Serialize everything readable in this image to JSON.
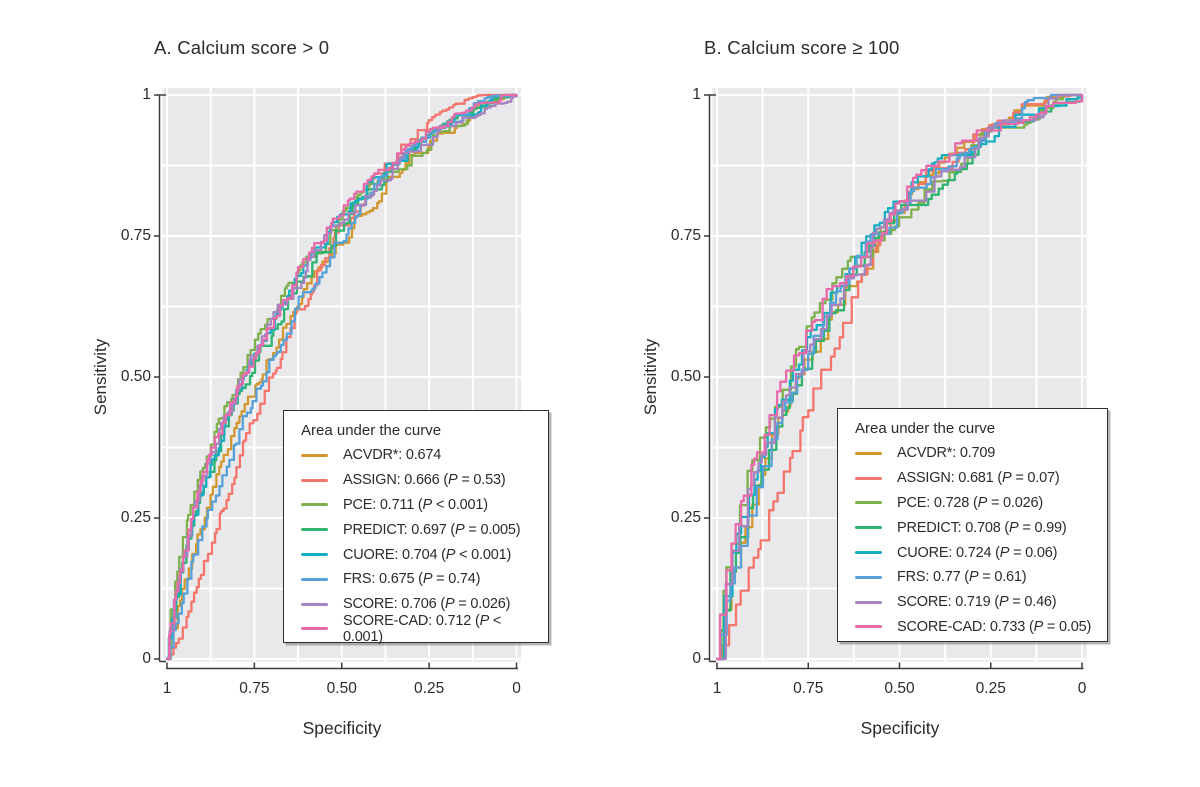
{
  "figure": {
    "background_color": "#ffffff",
    "panel_background_color": "#e9e9eb",
    "gridline_color": "#ffffff",
    "axis_color": "#3b3b3b",
    "text_color": "#2b2b2b"
  },
  "chart_data": [
    {
      "type": "line",
      "subtype": "ROC curve",
      "title": "A. Calcium score > 0",
      "xlabel": "Specificity",
      "ylabel": "Sensitivity",
      "x_axis": {
        "tick_labels": [
          "1",
          "0.75",
          "0.50",
          "0.25",
          "0"
        ],
        "range": [
          1,
          0
        ],
        "direction": "reversed"
      },
      "y_axis": {
        "tick_labels": [
          "1",
          "0.75",
          "0.50",
          "0.25",
          "0"
        ],
        "range": [
          0,
          1
        ]
      },
      "grid": {
        "on": true,
        "interval": 0.125,
        "color": "#ffffff"
      },
      "legend": {
        "title": "Area under the curve",
        "position": "inside-bottom-right",
        "items": [
          {
            "name": "ACVDR*",
            "auc": 0.674,
            "auc_text": "0.674",
            "p_text": null,
            "color": "#D2982F"
          },
          {
            "name": "ASSIGN",
            "auc": 0.666,
            "auc_text": "0.666",
            "p_text": "P = 0.53",
            "color": "#F3756C"
          },
          {
            "name": "PCE",
            "auc": 0.711,
            "auc_text": "0.711",
            "p_text": "P < 0.001",
            "color": "#7EB04B"
          },
          {
            "name": "PREDICT",
            "auc": 0.697,
            "auc_text": "0.697",
            "p_text": "P = 0.005",
            "color": "#2EB370"
          },
          {
            "name": "CUORE",
            "auc": 0.704,
            "auc_text": "0.704",
            "p_text": "P < 0.001",
            "color": "#17AEC2"
          },
          {
            "name": "FRS",
            "auc": 0.675,
            "auc_text": "0.675",
            "p_text": "P = 0.74",
            "color": "#58A1D8"
          },
          {
            "name": "SCORE",
            "auc": 0.706,
            "auc_text": "0.706",
            "p_text": "P = 0.026",
            "color": "#A484C0"
          },
          {
            "name": "SCORE-CAD",
            "auc": 0.712,
            "auc_text": "0.712",
            "p_text": "P < 0.001",
            "color": "#E76BA8"
          }
        ]
      }
    },
    {
      "type": "line",
      "subtype": "ROC curve",
      "title": "B. Calcium score ≥ 100",
      "xlabel": "Specificity",
      "ylabel": "Sensitivity",
      "x_axis": {
        "tick_labels": [
          "1",
          "0.75",
          "0.50",
          "0.25",
          "0"
        ],
        "range": [
          1,
          0
        ],
        "direction": "reversed"
      },
      "y_axis": {
        "tick_labels": [
          "1",
          "0.75",
          "0.50",
          "0.25",
          "0"
        ],
        "range": [
          0,
          1
        ]
      },
      "grid": {
        "on": true,
        "interval": 0.125,
        "color": "#ffffff"
      },
      "legend": {
        "title": "Area under the curve",
        "position": "inside-bottom-right",
        "items": [
          {
            "name": "ACVDR*",
            "auc": 0.709,
            "auc_text": "0.709",
            "p_text": null,
            "color": "#D2982F"
          },
          {
            "name": "ASSIGN",
            "auc": 0.681,
            "auc_text": "0.681",
            "p_text": "P = 0.07",
            "color": "#F3756C"
          },
          {
            "name": "PCE",
            "auc": 0.728,
            "auc_text": "0.728",
            "p_text": "P = 0.026",
            "color": "#7EB04B"
          },
          {
            "name": "PREDICT",
            "auc": 0.708,
            "auc_text": "0.708",
            "p_text": "P = 0.99",
            "color": "#2EB370"
          },
          {
            "name": "CUORE",
            "auc": 0.724,
            "auc_text": "0.724",
            "p_text": "P = 0.06",
            "color": "#17AEC2"
          },
          {
            "name": "FRS",
            "auc": 0.77,
            "auc_text": "0.77",
            "p_text": "P = 0.61",
            "color": "#58A1D8"
          },
          {
            "name": "SCORE",
            "auc": 0.719,
            "auc_text": "0.719",
            "p_text": "P = 0.46",
            "color": "#A484C0"
          },
          {
            "name": "SCORE-CAD",
            "auc": 0.733,
            "auc_text": "0.733",
            "p_text": "P = 0.05",
            "color": "#E76BA8"
          }
        ]
      }
    }
  ]
}
